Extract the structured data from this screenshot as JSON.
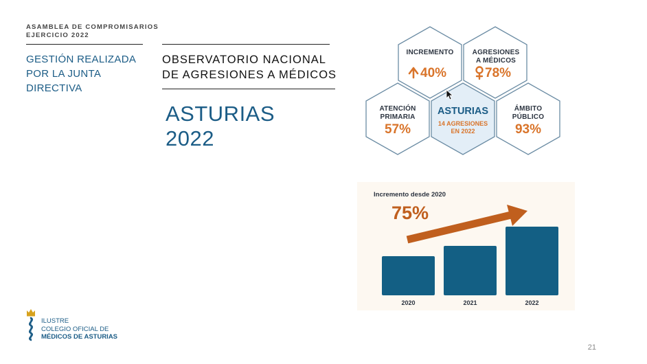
{
  "header": {
    "assembly_line1": "ASAMBLEA DE COMPROMISARIOS",
    "assembly_line2": "EJERCICIO 2022"
  },
  "section": {
    "line1": "GESTIÓN REALIZADA",
    "line2": "POR LA JUNTA",
    "line3": "DIRECTIVA"
  },
  "title": {
    "line1": "OBSERVATORIO NACIONAL",
    "line2": "DE AGRESIONES A MÉDICOS"
  },
  "region": {
    "name": "ASTURIAS",
    "year": "2022"
  },
  "hexagons": {
    "increase": {
      "label": "INCREMENTO",
      "value": "40%",
      "icon": "arrow-up-icon"
    },
    "aggressions": {
      "label_line1": "AGRESIONES",
      "label_line2": "A MÉDICOS",
      "value": "78%",
      "icon": "female-icon"
    },
    "primary": {
      "label_line1": "ATENCIÓN",
      "label_line2": "PRIMARIA",
      "value": "57%"
    },
    "center": {
      "title": "ASTURIAS",
      "sub_line1": "14 AGRESIONES",
      "sub_line2": "EN 2022"
    },
    "public": {
      "label_line1": "ÁMBITO",
      "label_line2": "PÚBLICO",
      "value": "93%"
    },
    "colors": {
      "border": "#6a8ba3",
      "center_fill": "#e3eef7",
      "accent": "#d9742a",
      "label": "#2c3440"
    }
  },
  "chart_data": {
    "type": "bar",
    "title": "Incremento desde 2020",
    "highlight_value": "75%",
    "categories": [
      "2020",
      "2021",
      "2022"
    ],
    "values": [
      57,
      72,
      100
    ],
    "ylim": [
      0,
      100
    ],
    "grid": false,
    "bar_color": "#135f84",
    "arrow_color": "#c05f1e",
    "background": "#fdf8f1"
  },
  "footer": {
    "org_line1": "ILUSTRE",
    "org_line2": "COLEGIO OFICIAL DE",
    "org_line3": "MÉDICOS DE ASTURIAS",
    "page_number": "21"
  }
}
